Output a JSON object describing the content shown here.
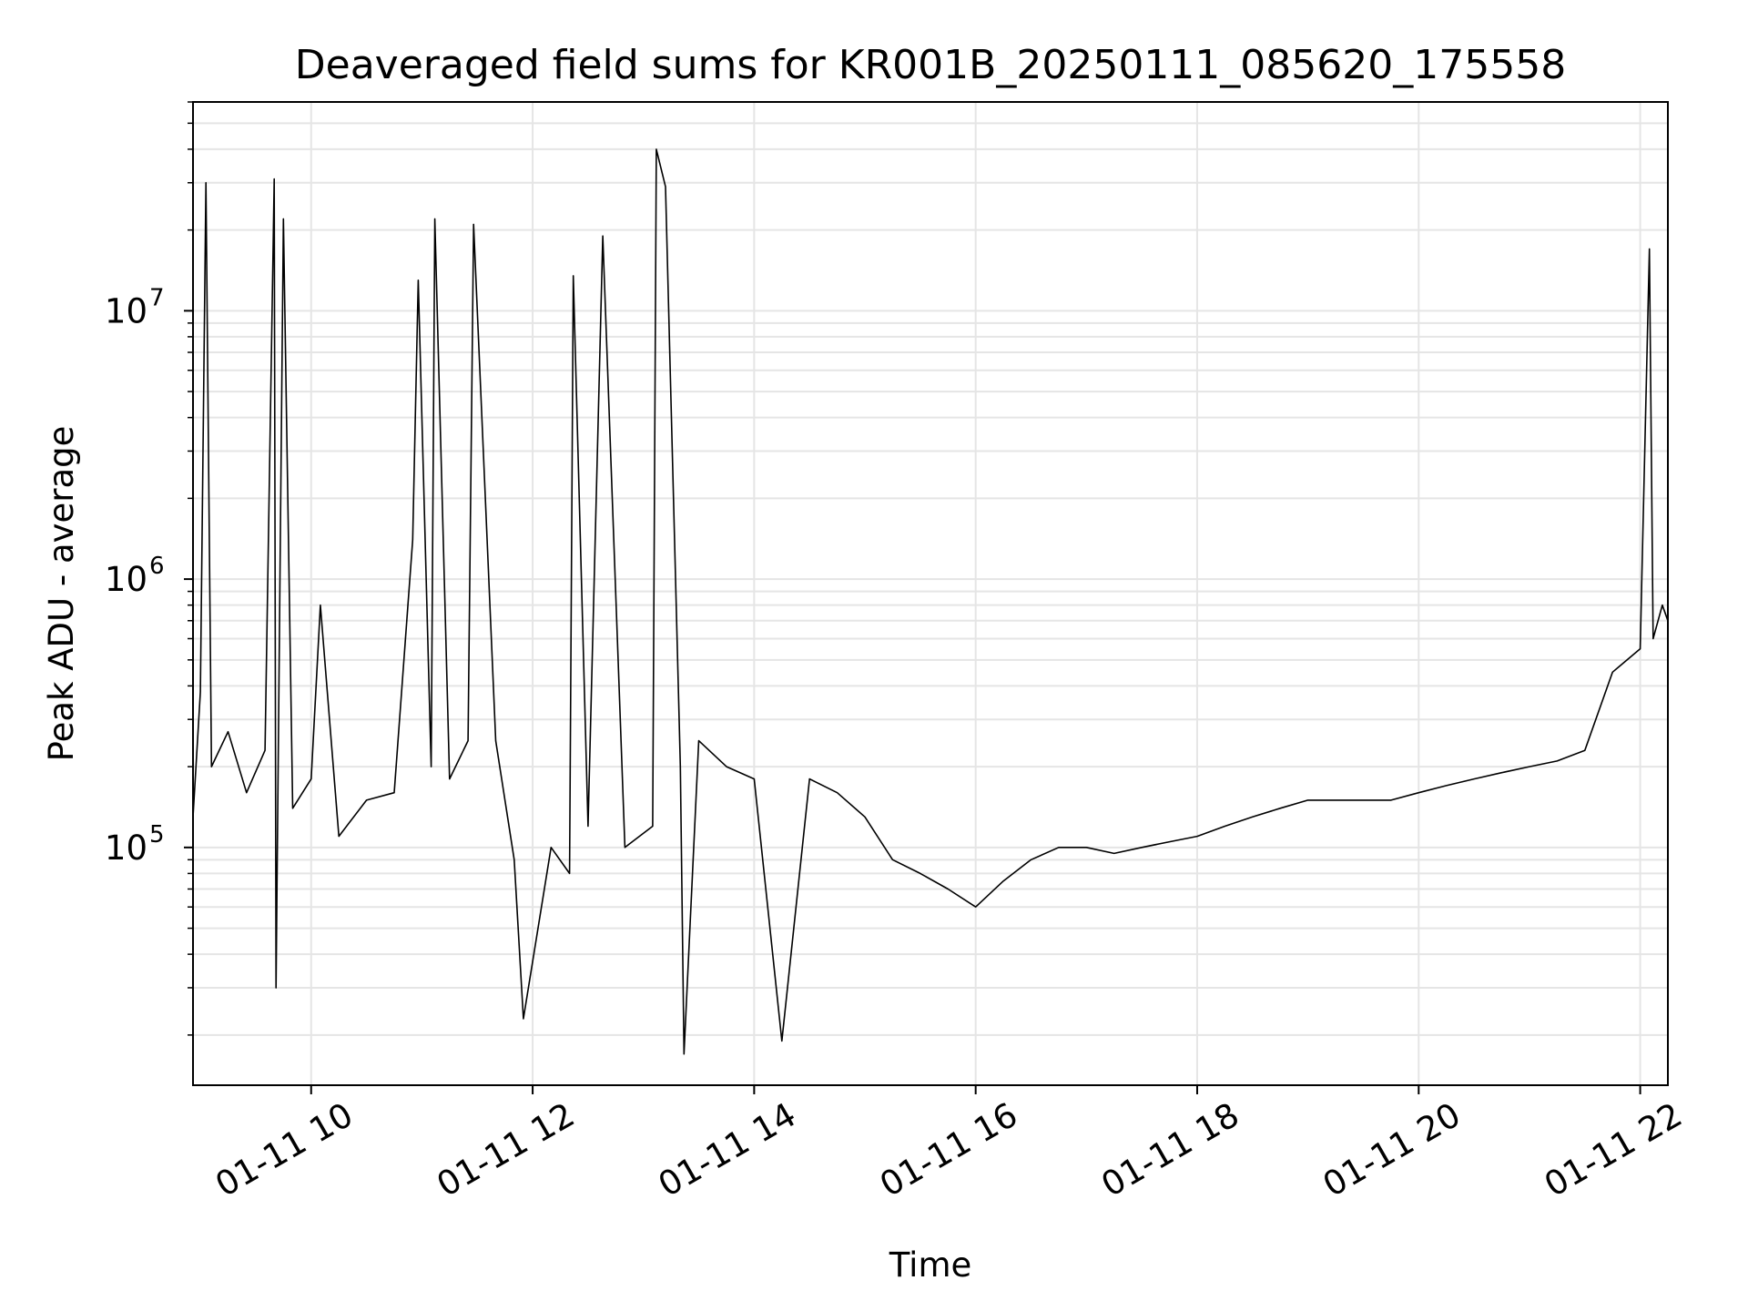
{
  "chart_data": {
    "type": "line",
    "title": "Deaveraged field sums for KR001B_20250111_085620_175558",
    "xlabel": "Time",
    "ylabel": "Peak ADU - average",
    "x_axis": {
      "type": "time",
      "range": [
        "2025-01-11 08:56",
        "2025-01-11 22:15"
      ],
      "ticks": [
        {
          "value": "2025-01-11 10:00",
          "label": "01-11 10"
        },
        {
          "value": "2025-01-11 12:00",
          "label": "01-11 12"
        },
        {
          "value": "2025-01-11 14:00",
          "label": "01-11 14"
        },
        {
          "value": "2025-01-11 16:00",
          "label": "01-11 16"
        },
        {
          "value": "2025-01-11 18:00",
          "label": "01-11 18"
        },
        {
          "value": "2025-01-11 20:00",
          "label": "01-11 20"
        },
        {
          "value": "2025-01-11 22:00",
          "label": "01-11 22"
        }
      ],
      "tick_rotation_deg": 30
    },
    "y_axis": {
      "scale": "log",
      "range": [
        13000,
        60000000
      ],
      "ticks": [
        {
          "value": 100000,
          "base": "10",
          "exp": "5"
        },
        {
          "value": 1000000,
          "base": "10",
          "exp": "6"
        },
        {
          "value": 10000000,
          "base": "10",
          "exp": "7"
        }
      ]
    },
    "grid": true,
    "series": [
      {
        "color": "#000000",
        "points": [
          [
            "2025-01-11 08:56",
            130000
          ],
          [
            "2025-01-11 09:00",
            380000
          ],
          [
            "2025-01-11 09:03",
            30000000
          ],
          [
            "2025-01-11 09:06",
            200000
          ],
          [
            "2025-01-11 09:15",
            270000
          ],
          [
            "2025-01-11 09:25",
            160000
          ],
          [
            "2025-01-11 09:35",
            230000
          ],
          [
            "2025-01-11 09:40",
            31000000
          ],
          [
            "2025-01-11 09:41",
            30000
          ],
          [
            "2025-01-11 09:45",
            22000000
          ],
          [
            "2025-01-11 09:50",
            140000
          ],
          [
            "2025-01-11 10:00",
            180000
          ],
          [
            "2025-01-11 10:05",
            800000
          ],
          [
            "2025-01-11 10:15",
            110000
          ],
          [
            "2025-01-11 10:30",
            150000
          ],
          [
            "2025-01-11 10:45",
            160000
          ],
          [
            "2025-01-11 10:55",
            1400000
          ],
          [
            "2025-01-11 10:58",
            13000000
          ],
          [
            "2025-01-11 11:05",
            200000
          ],
          [
            "2025-01-11 11:07",
            22000000
          ],
          [
            "2025-01-11 11:15",
            180000
          ],
          [
            "2025-01-11 11:25",
            250000
          ],
          [
            "2025-01-11 11:28",
            21000000
          ],
          [
            "2025-01-11 11:40",
            250000
          ],
          [
            "2025-01-11 11:50",
            90000
          ],
          [
            "2025-01-11 11:55",
            23000
          ],
          [
            "2025-01-11 12:10",
            100000
          ],
          [
            "2025-01-11 12:20",
            80000
          ],
          [
            "2025-01-11 12:22",
            13500000
          ],
          [
            "2025-01-11 12:30",
            120000
          ],
          [
            "2025-01-11 12:38",
            19000000
          ],
          [
            "2025-01-11 12:50",
            100000
          ],
          [
            "2025-01-11 13:05",
            120000
          ],
          [
            "2025-01-11 13:07",
            40000000
          ],
          [
            "2025-01-11 13:12",
            29000000
          ],
          [
            "2025-01-11 13:20",
            200000
          ],
          [
            "2025-01-11 13:22",
            17000
          ],
          [
            "2025-01-11 13:30",
            250000
          ],
          [
            "2025-01-11 13:45",
            200000
          ],
          [
            "2025-01-11 14:00",
            180000
          ],
          [
            "2025-01-11 14:15",
            19000
          ],
          [
            "2025-01-11 14:30",
            180000
          ],
          [
            "2025-01-11 14:45",
            160000
          ],
          [
            "2025-01-11 15:00",
            130000
          ],
          [
            "2025-01-11 15:15",
            90000
          ],
          [
            "2025-01-11 15:30",
            80000
          ],
          [
            "2025-01-11 15:45",
            70000
          ],
          [
            "2025-01-11 16:00",
            60000
          ],
          [
            "2025-01-11 16:15",
            75000
          ],
          [
            "2025-01-11 16:30",
            90000
          ],
          [
            "2025-01-11 16:45",
            100000
          ],
          [
            "2025-01-11 17:00",
            100000
          ],
          [
            "2025-01-11 17:15",
            95000
          ],
          [
            "2025-01-11 17:30",
            100000
          ],
          [
            "2025-01-11 17:45",
            105000
          ],
          [
            "2025-01-11 18:00",
            110000
          ],
          [
            "2025-01-11 18:15",
            120000
          ],
          [
            "2025-01-11 18:30",
            130000
          ],
          [
            "2025-01-11 18:45",
            140000
          ],
          [
            "2025-01-11 19:00",
            150000
          ],
          [
            "2025-01-11 19:15",
            150000
          ],
          [
            "2025-01-11 19:30",
            150000
          ],
          [
            "2025-01-11 19:45",
            150000
          ],
          [
            "2025-01-11 20:00",
            160000
          ],
          [
            "2025-01-11 20:15",
            170000
          ],
          [
            "2025-01-11 20:30",
            180000
          ],
          [
            "2025-01-11 20:45",
            190000
          ],
          [
            "2025-01-11 21:00",
            200000
          ],
          [
            "2025-01-11 21:15",
            210000
          ],
          [
            "2025-01-11 21:30",
            230000
          ],
          [
            "2025-01-11 21:45",
            450000
          ],
          [
            "2025-01-11 22:00",
            550000
          ],
          [
            "2025-01-11 22:05",
            17000000
          ],
          [
            "2025-01-11 22:07",
            600000
          ],
          [
            "2025-01-11 22:12",
            800000
          ],
          [
            "2025-01-11 22:15",
            700000
          ]
        ]
      }
    ]
  }
}
